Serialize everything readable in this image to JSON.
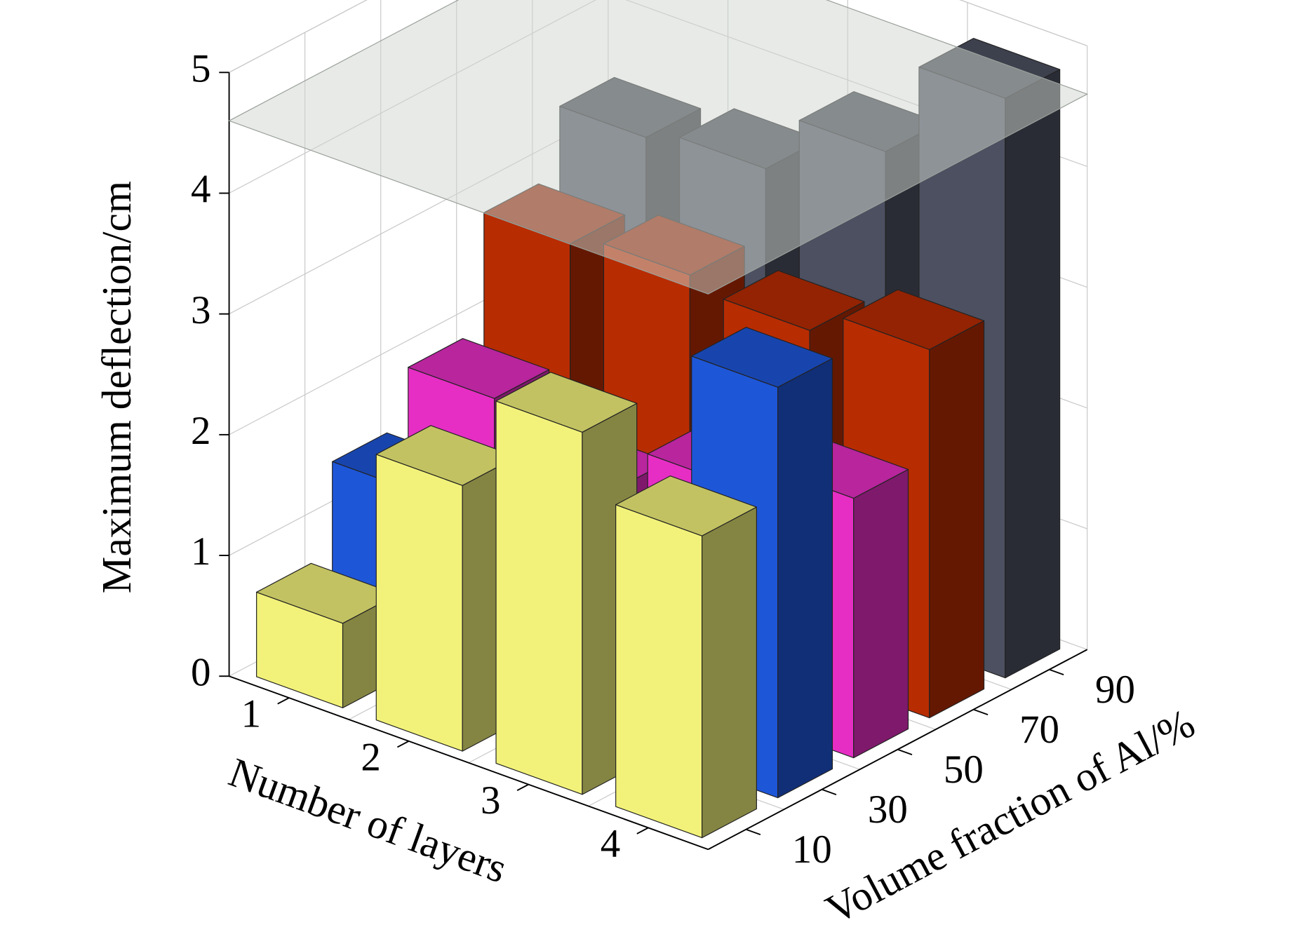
{
  "chart_data": {
    "type": "bar3d",
    "zlabel": "Maximum deflection/cm",
    "xlabel": "Number of layers",
    "ylabel": "Volume fraction of Al/%",
    "categories": [
      "1",
      "2",
      "3",
      "4"
    ],
    "series": [
      {
        "name": "10",
        "color": "#f2f27a",
        "values": [
          0.7,
          2.2,
          3.0,
          2.5
        ]
      },
      {
        "name": "30",
        "color": "#1e56d8",
        "values": [
          1.45,
          1.0,
          1.25,
          3.4
        ]
      },
      {
        "name": "50",
        "color": "#e62ec4",
        "values": [
          1.9,
          1.5,
          1.9,
          2.15
        ]
      },
      {
        "name": "70",
        "color": "#b82c02",
        "values": [
          2.85,
          2.95,
          2.85,
          3.05
        ]
      },
      {
        "name": "90",
        "color": "#4c5060",
        "values": [
          3.4,
          3.5,
          4.0,
          4.8
        ]
      }
    ],
    "zlim": [
      0,
      5
    ],
    "zticks": [
      0,
      1,
      2,
      3,
      4,
      5
    ],
    "reference_plane": 4.6,
    "grid": true
  }
}
